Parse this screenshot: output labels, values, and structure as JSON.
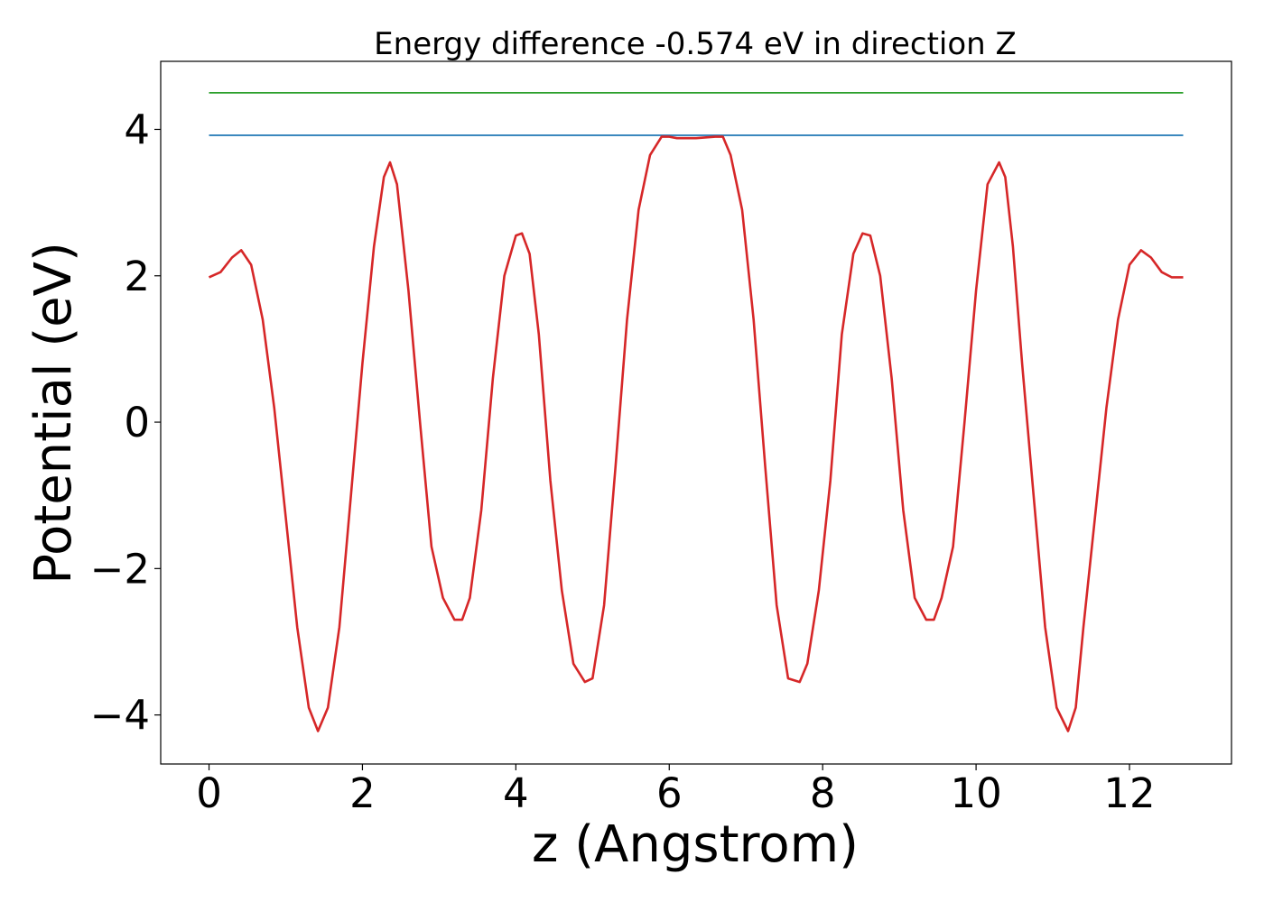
{
  "chart_data": {
    "type": "line",
    "title": "Energy difference -0.574 eV in direction Z",
    "xlabel": "z (Angstrom)",
    "ylabel": "Potential (eV)",
    "xlim": [
      -0.63,
      13.33
    ],
    "ylim": [
      -4.67,
      4.93
    ],
    "xticks": [
      0,
      2,
      4,
      6,
      8,
      10,
      12
    ],
    "xtick_labels": [
      "0",
      "2",
      "4",
      "6",
      "8",
      "10",
      "12"
    ],
    "yticks": [
      -4,
      -2,
      0,
      2,
      4
    ],
    "ytick_labels": [
      "−4",
      "−2",
      "0",
      "2",
      "4"
    ],
    "grid": false,
    "series": [
      {
        "color": "#2ca02c",
        "x": [
          0,
          12.7
        ],
        "y": [
          4.5,
          4.5
        ]
      },
      {
        "color": "#1f77b4",
        "x": [
          0,
          12.7
        ],
        "y": [
          3.92,
          3.92
        ]
      },
      {
        "color": "#d62728",
        "x": [
          0,
          0.15,
          0.3,
          0.42,
          0.55,
          0.7,
          0.85,
          1.0,
          1.15,
          1.3,
          1.42,
          1.55,
          1.7,
          1.85,
          2.0,
          2.15,
          2.28,
          2.36,
          2.45,
          2.6,
          2.75,
          2.9,
          3.05,
          3.2,
          3.3,
          3.4,
          3.55,
          3.7,
          3.85,
          4.0,
          4.08,
          4.18,
          4.3,
          4.45,
          4.6,
          4.75,
          4.9,
          5.0,
          5.15,
          5.3,
          5.45,
          5.6,
          5.75,
          5.9,
          6.0,
          6.1,
          6.35,
          6.6,
          6.7,
          6.8,
          6.95,
          7.1,
          7.25,
          7.4,
          7.55,
          7.7,
          7.8,
          7.95,
          8.1,
          8.25,
          8.4,
          8.52,
          8.62,
          8.75,
          8.9,
          9.05,
          9.2,
          9.35,
          9.45,
          9.55,
          9.7,
          9.85,
          10.0,
          10.15,
          10.3,
          10.38,
          10.48,
          10.6,
          10.75,
          10.9,
          11.05,
          11.2,
          11.3,
          11.4,
          11.55,
          11.7,
          11.85,
          12.0,
          12.15,
          12.28,
          12.42,
          12.55,
          12.7
        ],
        "y": [
          1.98,
          2.05,
          2.25,
          2.35,
          2.15,
          1.4,
          0.2,
          -1.3,
          -2.8,
          -3.9,
          -4.22,
          -3.9,
          -2.8,
          -1.0,
          0.8,
          2.4,
          3.35,
          3.55,
          3.25,
          1.8,
          0.0,
          -1.7,
          -2.4,
          -2.7,
          -2.7,
          -2.4,
          -1.2,
          0.6,
          2.0,
          2.55,
          2.58,
          2.3,
          1.2,
          -0.8,
          -2.3,
          -3.3,
          -3.55,
          -3.5,
          -2.5,
          -0.6,
          1.4,
          2.9,
          3.65,
          3.9,
          3.9,
          3.88,
          3.88,
          3.9,
          3.9,
          3.65,
          2.9,
          1.4,
          -0.6,
          -2.5,
          -3.5,
          -3.55,
          -3.3,
          -2.3,
          -0.8,
          1.2,
          2.3,
          2.58,
          2.55,
          2.0,
          0.6,
          -1.2,
          -2.4,
          -2.7,
          -2.7,
          -2.4,
          -1.7,
          0.0,
          1.8,
          3.25,
          3.55,
          3.35,
          2.4,
          0.8,
          -1.0,
          -2.8,
          -3.9,
          -4.22,
          -3.9,
          -2.8,
          -1.3,
          0.2,
          1.4,
          2.15,
          2.35,
          2.25,
          2.05,
          1.98,
          1.98
        ]
      }
    ]
  }
}
